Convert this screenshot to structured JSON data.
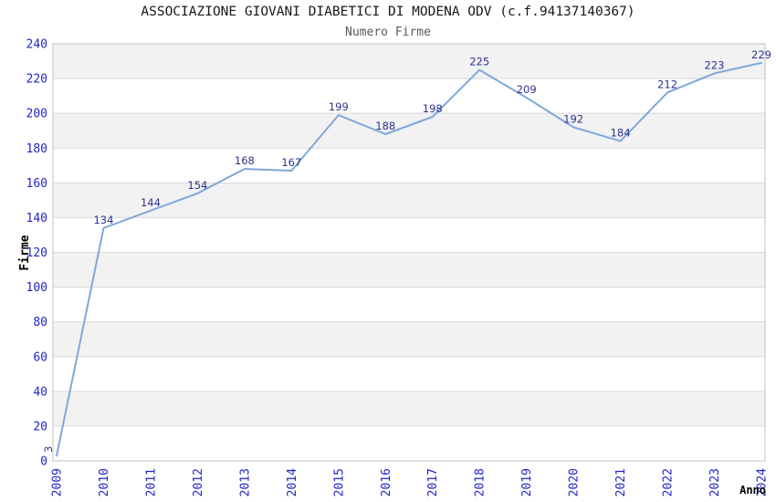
{
  "chart_data": {
    "type": "line",
    "title": "ASSOCIAZIONE GIOVANI DIABETICI DI MODENA ODV (c.f.94137140367)",
    "subtitle": "Numero Firme",
    "xlabel": "Anno",
    "ylabel": "Firme",
    "categories": [
      "2009",
      "2010",
      "2011",
      "2012",
      "2013",
      "2014",
      "2015",
      "2016",
      "2017",
      "2018",
      "2019",
      "2020",
      "2021",
      "2022",
      "2023",
      "2024"
    ],
    "values": [
      3,
      134,
      144,
      154,
      168,
      167,
      199,
      188,
      198,
      225,
      209,
      192,
      184,
      212,
      223,
      229
    ],
    "ylim": [
      0,
      240
    ],
    "ytick_step": 20,
    "grid": "horizontal",
    "alternating_bands": true,
    "legend": "none",
    "data_labels_shown": true,
    "first_label_rotated": true,
    "x_tick_rotation_deg": -90,
    "colors": {
      "line": "#7EA8DB",
      "tick_label": "#2323cc",
      "data_label": "#30308c",
      "band": "#f2f2f2",
      "band_alt": "#ffffff",
      "gridline": "#d9d9d9",
      "border": "#c0c0c0",
      "title": "#1a1a1a",
      "subtitle": "#595959"
    }
  }
}
